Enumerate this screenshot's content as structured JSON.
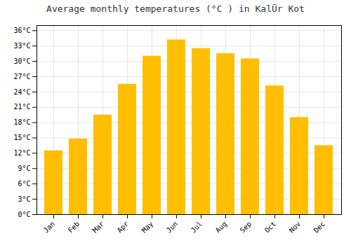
{
  "chart_data": {
    "type": "bar",
    "title": "Average monthly temperatures (°C ) in KalŪr Kot",
    "categories": [
      "Jan",
      "Feb",
      "Mar",
      "Apr",
      "May",
      "Jun",
      "Jul",
      "Aug",
      "Sep",
      "Oct",
      "Nov",
      "Dec"
    ],
    "values": [
      12.5,
      14.8,
      19.5,
      25.5,
      31.0,
      34.2,
      32.5,
      31.5,
      30.5,
      25.2,
      19.0,
      13.5
    ],
    "color": "#FFBE00",
    "ylim": [
      0,
      37
    ],
    "yticks": [
      {
        "value": 0,
        "label": "0°C"
      },
      {
        "value": 3,
        "label": "3°C"
      },
      {
        "value": 6,
        "label": "6°C"
      },
      {
        "value": 9,
        "label": "9°C"
      },
      {
        "value": 12,
        "label": "12°C"
      },
      {
        "value": 15,
        "label": "15°C"
      },
      {
        "value": 18,
        "label": "18°C"
      },
      {
        "value": 21,
        "label": "21°C"
      },
      {
        "value": 24,
        "label": "24°C"
      },
      {
        "value": 27,
        "label": "27°C"
      },
      {
        "value": 30,
        "label": "30°C"
      },
      {
        "value": 33,
        "label": "33°C"
      },
      {
        "value": 36,
        "label": "36°C"
      }
    ],
    "grid": true
  }
}
